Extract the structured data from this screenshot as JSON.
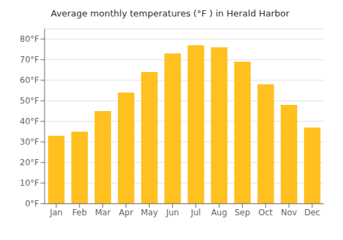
{
  "chart_data": {
    "type": "bar",
    "title": "Average monthly temperatures (°F ) in Herald Harbor",
    "categories": [
      "Jan",
      "Feb",
      "Mar",
      "Apr",
      "May",
      "Jun",
      "Jul",
      "Aug",
      "Sep",
      "Oct",
      "Nov",
      "Dec"
    ],
    "values": [
      33,
      35,
      45,
      54,
      64,
      73,
      77,
      76,
      69,
      58,
      48,
      37
    ],
    "color": "#FFC020",
    "ylim": [
      0,
      85
    ],
    "yticks": [
      {
        "value": 0,
        "label": "0°F"
      },
      {
        "value": 10,
        "label": "10°F"
      },
      {
        "value": 20,
        "label": "20°F"
      },
      {
        "value": 30,
        "label": "30°F"
      },
      {
        "value": 40,
        "label": "40°F"
      },
      {
        "value": 50,
        "label": "50°F"
      },
      {
        "value": 60,
        "label": "60°F"
      },
      {
        "value": 70,
        "label": "70°F"
      },
      {
        "value": 80,
        "label": "80°F"
      }
    ],
    "grid": true
  }
}
